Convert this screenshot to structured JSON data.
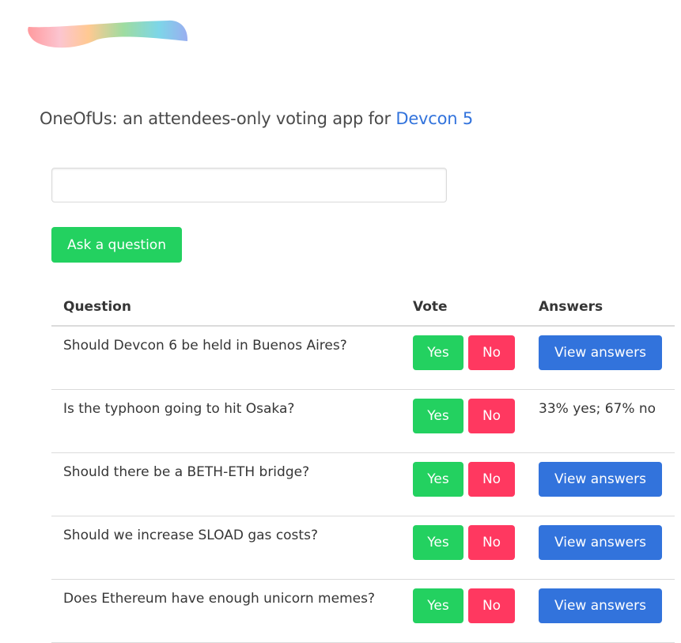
{
  "header": {
    "title_prefix": "OneOfUs: an attendees-only voting app for ",
    "title_link": "Devcon 5"
  },
  "form": {
    "input_value": "",
    "input_placeholder": "",
    "ask_label": "Ask a question"
  },
  "table": {
    "headers": [
      "Question",
      "Vote",
      "Answers"
    ],
    "rows": [
      {
        "question": "Should Devcon 6 be held in Buenos Aires?",
        "yes": "Yes",
        "no": "No",
        "answer": "View answers"
      },
      {
        "question": "Is the typhoon going to hit Osaka?",
        "yes": "Yes",
        "no": "No",
        "answer": "33% yes; 67% no"
      },
      {
        "question": "Should there be a BETH-ETH bridge?",
        "yes": "Yes",
        "no": "No",
        "answer": "View answers"
      },
      {
        "question": "Should we increase SLOAD gas costs?",
        "yes": "Yes",
        "no": "No",
        "answer": "View answers"
      },
      {
        "question": "Does Ethereum have enough unicorn memes?",
        "yes": "Yes",
        "no": "No",
        "answer": "View answers"
      }
    ]
  },
  "colors": {
    "success": "#23d160",
    "danger": "#ff3860",
    "link": "#3273dc"
  }
}
